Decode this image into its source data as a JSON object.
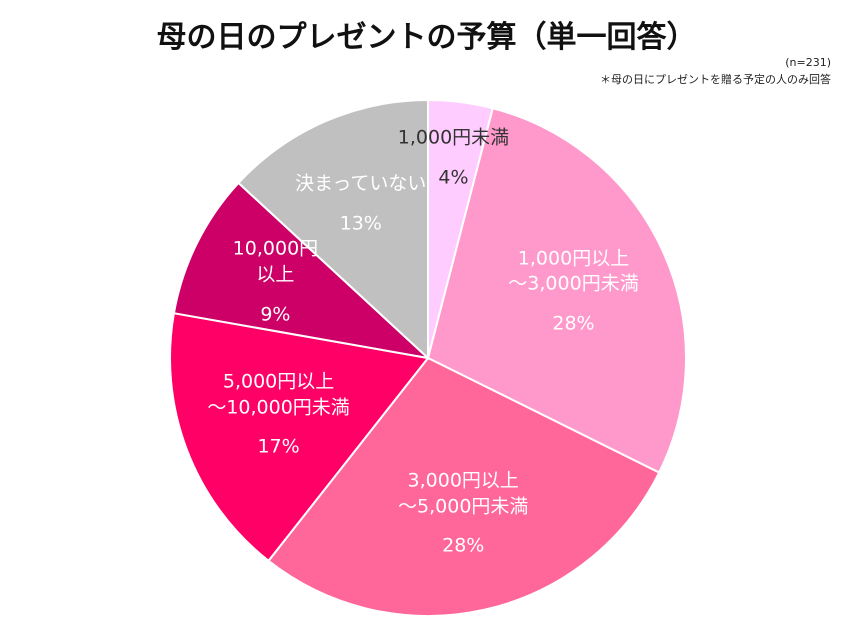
{
  "chart_data": {
    "type": "pie",
    "title": "母の日のプレゼントの予算（単一回答）",
    "subtitle": "(n=231)",
    "annotation": "＊母の日にプレゼントを贈る予定の人のみ回答",
    "categories": [
      "1,000円未満",
      "1,000円以上\n～3,000円未満",
      "3,000円以上\n～5,000円未満",
      "5,000円以上\n～10,000円未満",
      "10,000円\n以上",
      "決まっていない"
    ],
    "values": [
      4,
      28,
      28,
      17,
      9,
      13
    ],
    "value_labels": [
      "4%",
      "28%",
      "28%",
      "17%",
      "9%",
      "13%"
    ],
    "colors": [
      "#ffccff",
      "#ff99cc",
      "#ff6699",
      "#ff0066",
      "#cc0066",
      "#c0c0c0"
    ]
  }
}
